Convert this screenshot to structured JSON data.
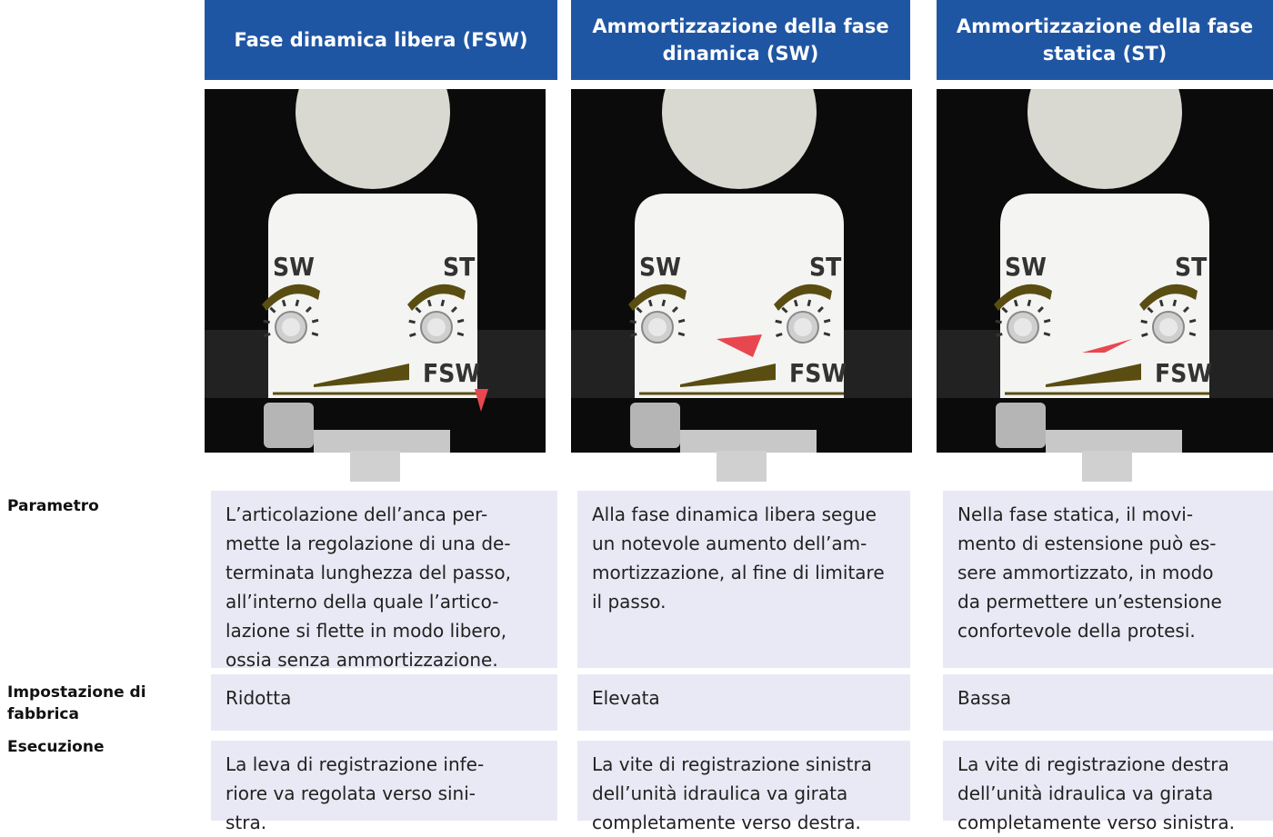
{
  "header": {
    "columns": [
      "Fase dinamica libera (FSW)",
      "Ammortizzazione della fase dinamica (SW)",
      "Ammortizzazione della fase statica (ST)"
    ]
  },
  "dial_labels": [
    "SW",
    "ST",
    "FSW"
  ],
  "table": {
    "rows": [
      {
        "label": "Parametro",
        "cells": [
          [
            "L’articolazione dell’anca per-",
            "mette la regolazione di una de-",
            "terminata lunghezza del passo,",
            "all’interno della quale l’artico-",
            "lazione si flette in modo libero,",
            "ossia senza ammortizzazione."
          ],
          [
            "Alla fase dinamica libera segue",
            "un notevole aumento dell’am-",
            "mortizzazione, al fine di limitare",
            "il passo."
          ],
          [
            "Nella fase statica, il movi-",
            "mento di estensione può es-",
            "sere ammortizzato, in modo",
            "da permettere un’estensione",
            "confortevole della protesi."
          ]
        ]
      },
      {
        "label": "Impostazione di fabbrica",
        "cells": [
          [
            "Ridotta"
          ],
          [
            "Elevata"
          ],
          [
            "Bassa"
          ]
        ]
      },
      {
        "label": "Esecuzione",
        "cells": [
          [
            "La leva di registrazione infe-",
            "riore va regolata verso sini-",
            "stra."
          ],
          [
            "La vite di registrazione sinistra",
            "dell’unità idraulica va girata",
            "completamente verso destra."
          ],
          [
            "La vite di registrazione destra",
            "dell’unità idraulica va girata",
            "completamente verso sinistra."
          ]
        ]
      }
    ]
  }
}
